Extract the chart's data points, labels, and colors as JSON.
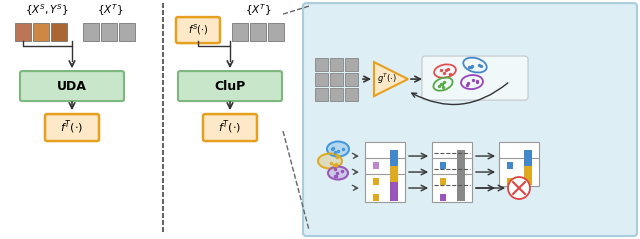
{
  "bg_color": "#ffffff",
  "green_box_color": "#c8e6c9",
  "green_box_edge": "#7cb87e",
  "orange_box_color": "#fde8c8",
  "orange_box_edge": "#e6a020",
  "title_left1": "$\\{X^S, Y^S\\}$",
  "title_left2": "$\\{X^T\\}$",
  "title_mid": "$\\{X^T\\}$",
  "uda_label": "UDA",
  "clup_label": "CluP",
  "ft_label": "$f^T(\\cdot)$",
  "fs_label": "$f^S(\\cdot)$",
  "gt_label": "$g^T(\\cdot)$",
  "cluster_colors_top": [
    "#e05050",
    "#4488cc",
    "#55aa44",
    "#9944bb"
  ],
  "cluster_colors_bot": [
    "#4499dd",
    "#ddaa22",
    "#9955bb"
  ],
  "bar_colors": [
    "#4488cc",
    "#ddaa22",
    "#9955bb"
  ],
  "face_src_colors": [
    "#bb7755",
    "#cc8844",
    "#aa6633"
  ],
  "face_gray": "#aaaaaa",
  "arrow_color": "#333333",
  "blue_bg": "#ddeef5",
  "blue_edge": "#aaccdd"
}
